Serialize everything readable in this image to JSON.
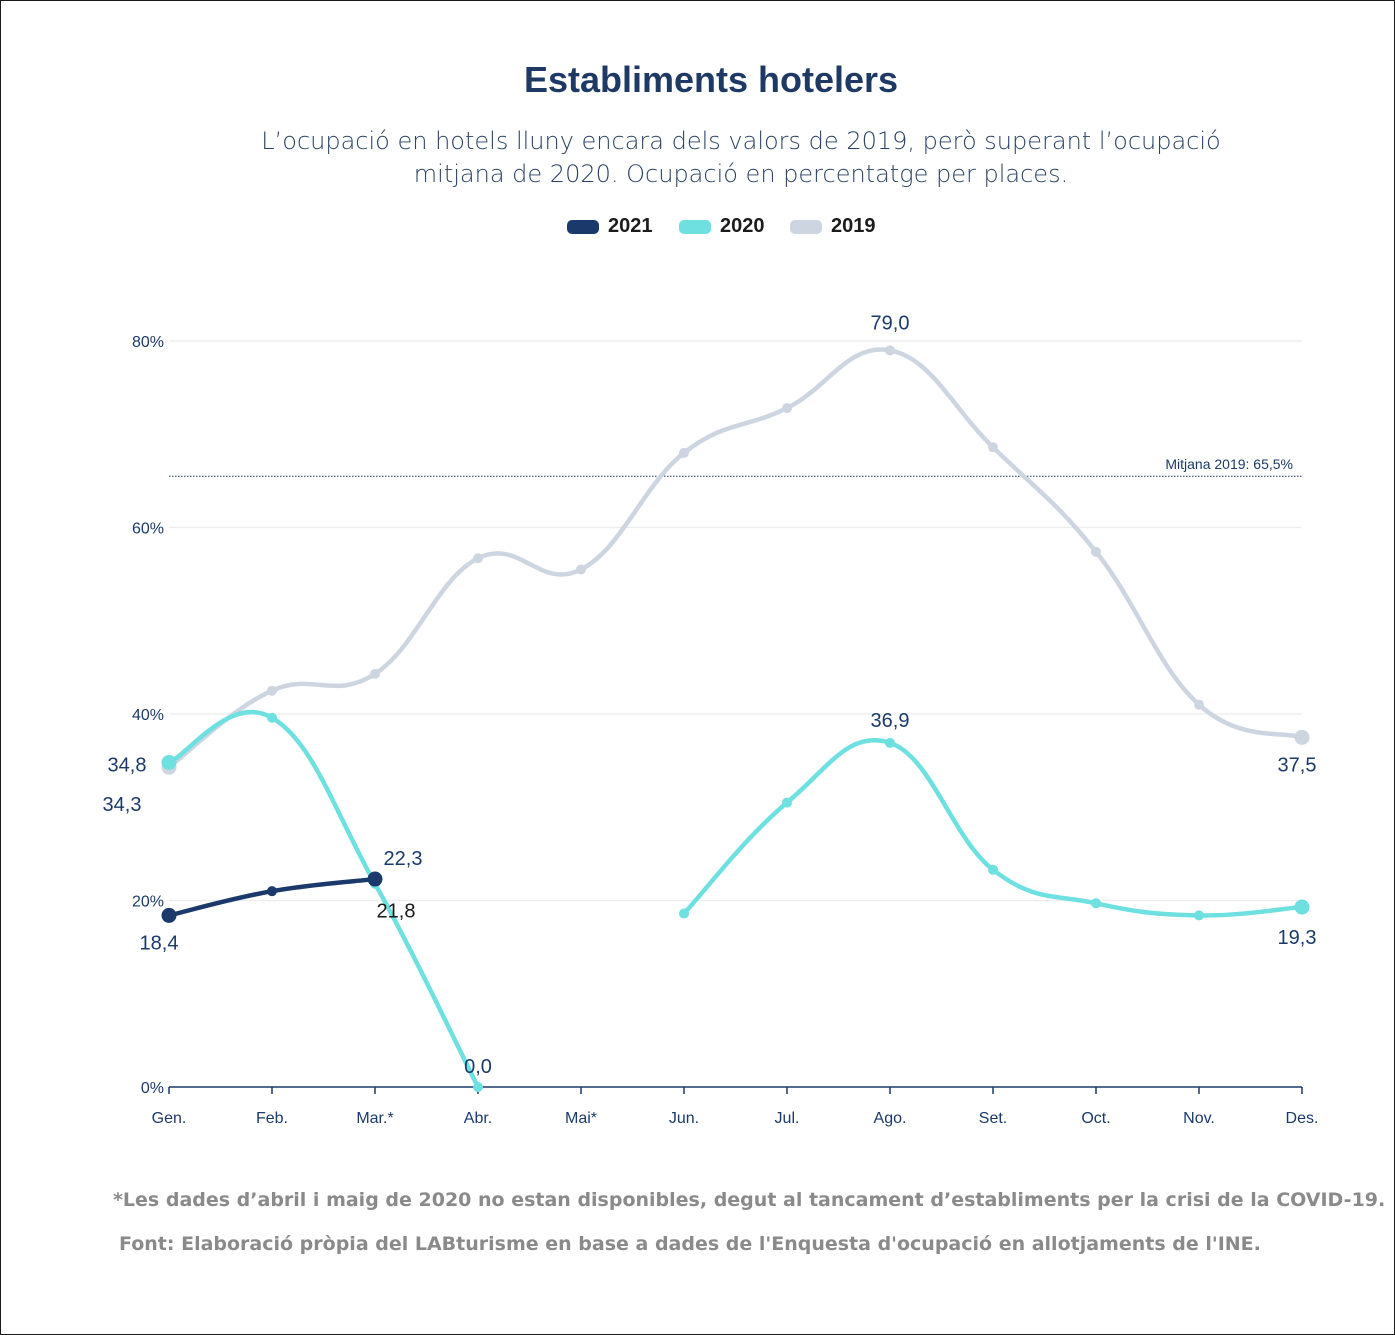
{
  "chart_data": {
    "type": "line",
    "title": "Establiments hotelers",
    "subtitle_line1": "L’ocupació en hotels lluny encara dels valors de 2019, però superant l’ocupació",
    "subtitle_line2": "mitjana de 2020. Ocupació en percentatge per places.",
    "categories": [
      "Gen.",
      "Feb.",
      "Mar.*",
      "Abr.",
      "Mai*",
      "Jun.",
      "Jul.",
      "Ago.",
      "Set.",
      "Oct.",
      "Nov.",
      "Des."
    ],
    "ylim": [
      0,
      80
    ],
    "yticks": [
      0,
      20,
      40,
      60,
      80
    ],
    "ytick_labels": [
      "0%",
      "20%",
      "40%",
      "60%",
      "80%"
    ],
    "grid": true,
    "legend_position": "top-center",
    "series": [
      {
        "name": "2021",
        "color": "#1b3a6b",
        "values": [
          18.4,
          21.0,
          22.3,
          null,
          null,
          null,
          null,
          null,
          null,
          null,
          null,
          null
        ]
      },
      {
        "name": "2020",
        "color": "#6ee0e0",
        "values": [
          34.8,
          39.6,
          21.8,
          0.0,
          null,
          18.6,
          30.5,
          36.9,
          23.3,
          19.7,
          18.4,
          19.3
        ]
      },
      {
        "name": "2019",
        "color": "#ccd5e0",
        "values": [
          34.3,
          42.5,
          44.3,
          56.7,
          55.5,
          68.0,
          72.8,
          79.0,
          68.6,
          57.4,
          41.0,
          37.5
        ]
      }
    ],
    "reference_line": {
      "value": 65.5,
      "label": "Mitjana 2019: 65,5%",
      "color": "#1b3a6b"
    },
    "data_labels": [
      {
        "series": "2021",
        "index": 0,
        "text": "18,4"
      },
      {
        "series": "2021",
        "index": 2,
        "text": "22,3"
      },
      {
        "series": "2020",
        "index": 0,
        "text": "34,8"
      },
      {
        "series": "2020",
        "index": 2,
        "text": "21,8"
      },
      {
        "series": "2020",
        "index": 3,
        "text": "0,0"
      },
      {
        "series": "2020",
        "index": 7,
        "text": "36,9"
      },
      {
        "series": "2020",
        "index": 11,
        "text": "19,3"
      },
      {
        "series": "2019",
        "index": 0,
        "text": "34,3"
      },
      {
        "series": "2019",
        "index": 7,
        "text": "79,0"
      },
      {
        "series": "2019",
        "index": 11,
        "text": "37,5"
      }
    ]
  },
  "footer": {
    "note": "*Les dades d’abril i maig de 2020 no estan disponibles, degut al tancament d’establiments per la crisi de la COVID-19.",
    "source": "Font: Elaboració pròpia del LABturisme en base a dades de l'Enquesta d'ocupació en allotjaments de l'INE."
  }
}
